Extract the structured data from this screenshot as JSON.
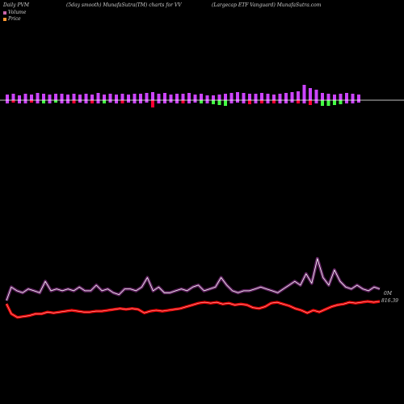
{
  "header": {
    "left": "Daily PVM",
    "center_left": "(5day smooth) MunafaSutra(TM) charts for VV",
    "center_right": "(Largecap ETF Vanguard) MunafaSutra.com"
  },
  "colors": {
    "background": "#000000",
    "volume_legend": "#cc66aa",
    "price_legend": "#ff9933",
    "volume_line": "#cc44cc",
    "price_line": "#ff0000",
    "bar_up": "#cc44ff",
    "bar_down": "#ff0033",
    "bar_green": "#44ff44",
    "baseline": "#ffffff"
  },
  "chart_data": {
    "type": "line",
    "legend": [
      "Volume",
      "Price"
    ],
    "right_labels": {
      "volume": "0M",
      "price": "816.39"
    },
    "volume_series": [
      0.5,
      0.3,
      0.2,
      0.4,
      0.3,
      0.2,
      0.8,
      0.3,
      0.4,
      0.3,
      0.4,
      0.3,
      0.5,
      0.3,
      0.3,
      0.6,
      0.3,
      0.4,
      0.2,
      0.1,
      0.4,
      0.4,
      0.3,
      0.5,
      1.0,
      0.3,
      0.5,
      0.2,
      0.2,
      0.3,
      0.4,
      0.3,
      0.5,
      0.6,
      0.3,
      0.4,
      0.5,
      1.0,
      0.6,
      0.3,
      0.2,
      0.3,
      0.3,
      0.4,
      0.5,
      0.4,
      0.3,
      0.2,
      0.4,
      0.6,
      0.8,
      0.6,
      1.2,
      0.7,
      2.0,
      1.0,
      0.6,
      1.4,
      0.8,
      0.5,
      0.4,
      0.6,
      0.4,
      0.3,
      0.5,
      0.4
    ],
    "price_series": [
      0.3,
      0.1,
      0.15,
      0.2,
      0.3,
      0.3,
      0.4,
      0.35,
      0.4,
      0.45,
      0.5,
      0.45,
      0.4,
      0.4,
      0.45,
      0.45,
      0.5,
      0.55,
      0.6,
      0.55,
      0.6,
      0.55,
      0.35,
      0.45,
      0.5,
      0.45,
      0.5,
      0.55,
      0.6,
      0.7,
      0.8,
      0.9,
      0.95,
      0.9,
      0.95,
      0.85,
      0.9,
      0.8,
      0.85,
      0.8,
      0.65,
      0.6,
      0.7,
      0.9,
      0.95,
      0.85,
      0.75,
      0.6,
      0.5,
      0.35,
      0.5,
      0.4,
      0.55,
      0.7,
      0.8,
      0.85,
      0.95,
      0.9,
      0.95,
      1.0,
      0.95,
      1.0
    ],
    "bars": [
      {
        "up": 7,
        "down": 4,
        "color": "up"
      },
      {
        "up": 8,
        "down": 3,
        "color": "down"
      },
      {
        "up": 6,
        "down": 4,
        "color": "up"
      },
      {
        "up": 8,
        "down": 4,
        "color": "up"
      },
      {
        "up": 7,
        "down": 3,
        "color": "down"
      },
      {
        "up": 9,
        "down": 4,
        "color": "up"
      },
      {
        "up": 8,
        "down": 4,
        "color": "green"
      },
      {
        "up": 7,
        "down": 4,
        "color": "up"
      },
      {
        "up": 8,
        "down": 3,
        "color": "green"
      },
      {
        "up": 8,
        "down": 4,
        "color": "up"
      },
      {
        "up": 7,
        "down": 4,
        "color": "up"
      },
      {
        "up": 8,
        "down": 4,
        "color": "down"
      },
      {
        "up": 7,
        "down": 3,
        "color": "up"
      },
      {
        "up": 8,
        "down": 4,
        "color": "up"
      },
      {
        "up": 7,
        "down": 4,
        "color": "down"
      },
      {
        "up": 9,
        "down": 4,
        "color": "up"
      },
      {
        "up": 7,
        "down": 4,
        "color": "green"
      },
      {
        "up": 8,
        "down": 3,
        "color": "up"
      },
      {
        "up": 7,
        "down": 4,
        "color": "up"
      },
      {
        "up": 8,
        "down": 4,
        "color": "down"
      },
      {
        "up": 7,
        "down": 3,
        "color": "up"
      },
      {
        "up": 8,
        "down": 4,
        "color": "up"
      },
      {
        "up": 8,
        "down": 4,
        "color": "up"
      },
      {
        "up": 9,
        "down": 3,
        "color": "up"
      },
      {
        "up": 10,
        "down": 9,
        "color": "down"
      },
      {
        "up": 8,
        "down": 4,
        "color": "up"
      },
      {
        "up": 9,
        "down": 4,
        "color": "up"
      },
      {
        "up": 7,
        "down": 3,
        "color": "up"
      },
      {
        "up": 8,
        "down": 4,
        "color": "up"
      },
      {
        "up": 8,
        "down": 4,
        "color": "down"
      },
      {
        "up": 9,
        "down": 4,
        "color": "up"
      },
      {
        "up": 7,
        "down": 3,
        "color": "up"
      },
      {
        "up": 8,
        "down": 4,
        "color": "green"
      },
      {
        "up": 6,
        "down": 4,
        "color": "up"
      },
      {
        "up": 6,
        "down": 5,
        "color": "green"
      },
      {
        "up": 7,
        "down": 6,
        "color": "green"
      },
      {
        "up": 8,
        "down": 7,
        "color": "green"
      },
      {
        "up": 9,
        "down": 4,
        "color": "up"
      },
      {
        "up": 10,
        "down": 3,
        "color": "up"
      },
      {
        "up": 9,
        "down": 4,
        "color": "up"
      },
      {
        "up": 8,
        "down": 5,
        "color": "down"
      },
      {
        "up": 8,
        "down": 4,
        "color": "up"
      },
      {
        "up": 9,
        "down": 4,
        "color": "down"
      },
      {
        "up": 8,
        "down": 4,
        "color": "up"
      },
      {
        "up": 7,
        "down": 4,
        "color": "down"
      },
      {
        "up": 8,
        "down": 4,
        "color": "up"
      },
      {
        "up": 9,
        "down": 4,
        "color": "up"
      },
      {
        "up": 10,
        "down": 3,
        "color": "up"
      },
      {
        "up": 11,
        "down": 4,
        "color": "down"
      },
      {
        "up": 19,
        "down": 4,
        "color": "up"
      },
      {
        "up": 15,
        "down": 6,
        "color": "down"
      },
      {
        "up": 13,
        "down": 4,
        "color": "up"
      },
      {
        "up": 9,
        "down": 7,
        "color": "green"
      },
      {
        "up": 8,
        "down": 7,
        "color": "green"
      },
      {
        "up": 7,
        "down": 6,
        "color": "green"
      },
      {
        "up": 8,
        "down": 5,
        "color": "green"
      },
      {
        "up": 9,
        "down": 4,
        "color": "up"
      },
      {
        "up": 8,
        "down": 4,
        "color": "up"
      },
      {
        "up": 7,
        "down": 3,
        "color": "up"
      }
    ]
  }
}
